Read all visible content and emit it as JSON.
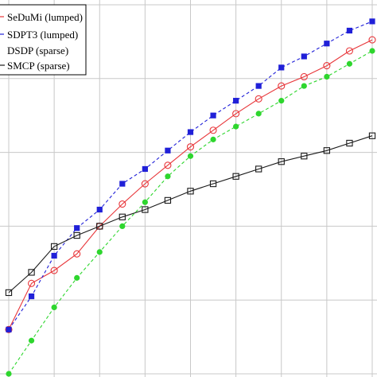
{
  "chart_data": {
    "type": "line",
    "title": "",
    "xlabel": "",
    "ylabel": "",
    "xlim": [
      0,
      16
    ],
    "ylim": [
      0,
      10
    ],
    "grid": true,
    "legend_position": "top-left",
    "series": [
      {
        "name": "SeDuMi (lumped)",
        "color": "#e8363a",
        "line_style": "solid",
        "marker": "open-circle",
        "x": [
          0,
          1,
          2,
          3,
          4,
          5,
          6,
          7,
          8,
          9,
          10,
          11,
          12,
          13,
          14,
          15,
          16
        ],
        "y": [
          1.2,
          2.45,
          2.8,
          3.25,
          4.0,
          4.6,
          5.15,
          5.65,
          6.15,
          6.6,
          7.05,
          7.45,
          7.8,
          8.05,
          8.35,
          8.75,
          9.05
        ]
      },
      {
        "name": "SDPT3 (lumped)",
        "color": "#2020d8",
        "line_style": "dashed",
        "marker": "filled-square",
        "x": [
          0,
          1,
          2,
          3,
          4,
          5,
          6,
          7,
          8,
          9,
          10,
          11,
          12,
          13,
          14,
          15,
          16
        ],
        "y": [
          1.2,
          2.1,
          3.2,
          3.95,
          4.45,
          5.15,
          5.55,
          6.05,
          6.55,
          7.0,
          7.4,
          7.8,
          8.3,
          8.6,
          8.95,
          9.3,
          9.55
        ]
      },
      {
        "name": "DSDP (sparse)",
        "color": "#1a1a1a",
        "line_style": "solid",
        "marker": "open-square",
        "x": [
          0,
          1,
          2,
          3,
          4,
          5,
          6,
          7,
          8,
          9,
          10,
          11,
          12,
          13,
          14,
          15,
          16
        ],
        "y": [
          2.2,
          2.75,
          3.45,
          3.75,
          4.0,
          4.25,
          4.45,
          4.7,
          4.95,
          5.15,
          5.35,
          5.55,
          5.75,
          5.9,
          6.05,
          6.25,
          6.45
        ]
      },
      {
        "name": "SMCP (sparse)",
        "color": "#2ed62e",
        "line_style": "dashed",
        "marker": "filled-circle",
        "x": [
          0,
          1,
          2,
          3,
          4,
          5,
          6,
          7,
          8,
          9,
          10,
          11,
          12,
          13,
          14,
          15,
          16
        ],
        "y": [
          0.0,
          0.9,
          1.8,
          2.6,
          3.3,
          4.0,
          4.65,
          5.35,
          5.9,
          6.35,
          6.7,
          7.05,
          7.4,
          7.8,
          8.05,
          8.4,
          8.75
        ]
      }
    ]
  }
}
